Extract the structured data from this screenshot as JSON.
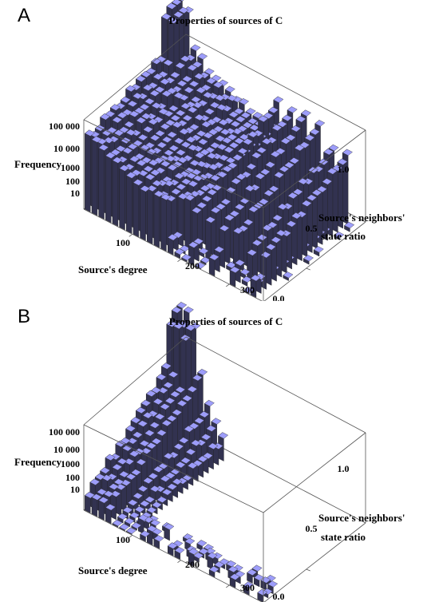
{
  "chart_data": [
    {
      "panel_label": "A",
      "type": "3d-bar-histogram",
      "title": "Properties of sources of C",
      "xlabel": "Source's degree",
      "ylabel_line1": "Source's neighbors'",
      "ylabel_line2": "state ratio",
      "zlabel": "Frequency",
      "x_ticks": [
        "100",
        "200",
        "300"
      ],
      "y_ticks": [
        "0.0",
        "0.5",
        "1.0"
      ],
      "z_ticks": [
        "100 000",
        "10 000",
        "1000",
        "100",
        "10"
      ],
      "x_range": [
        0,
        370
      ],
      "y_range": [
        0,
        1.2
      ],
      "z_scale": "log",
      "bar_color": "#9d9dfa",
      "coverage": "dense ridge across all degrees and ratios; tallest near low degree, high ratio; sparse columns at high degree"
    },
    {
      "panel_label": "B",
      "type": "3d-bar-histogram",
      "title": "Properties of sources of C",
      "xlabel": "Source's degree",
      "ylabel_line1": "Source's neighbors'",
      "ylabel_line2": "state ratio",
      "zlabel": "Frequency",
      "x_ticks": [
        "100",
        "200",
        "300"
      ],
      "y_ticks": [
        "0.0",
        "0.5",
        "1.0"
      ],
      "z_ticks": [
        "100 000",
        "10 000",
        "1000",
        "100",
        "10"
      ],
      "x_range": [
        0,
        370
      ],
      "y_range": [
        0,
        1.2
      ],
      "z_scale": "log",
      "bar_color": "#9d9dfa",
      "coverage": "mass concentrated at low degree; tallest near low degree, high ratio; isolated low bars along high degree at low ratio"
    }
  ]
}
